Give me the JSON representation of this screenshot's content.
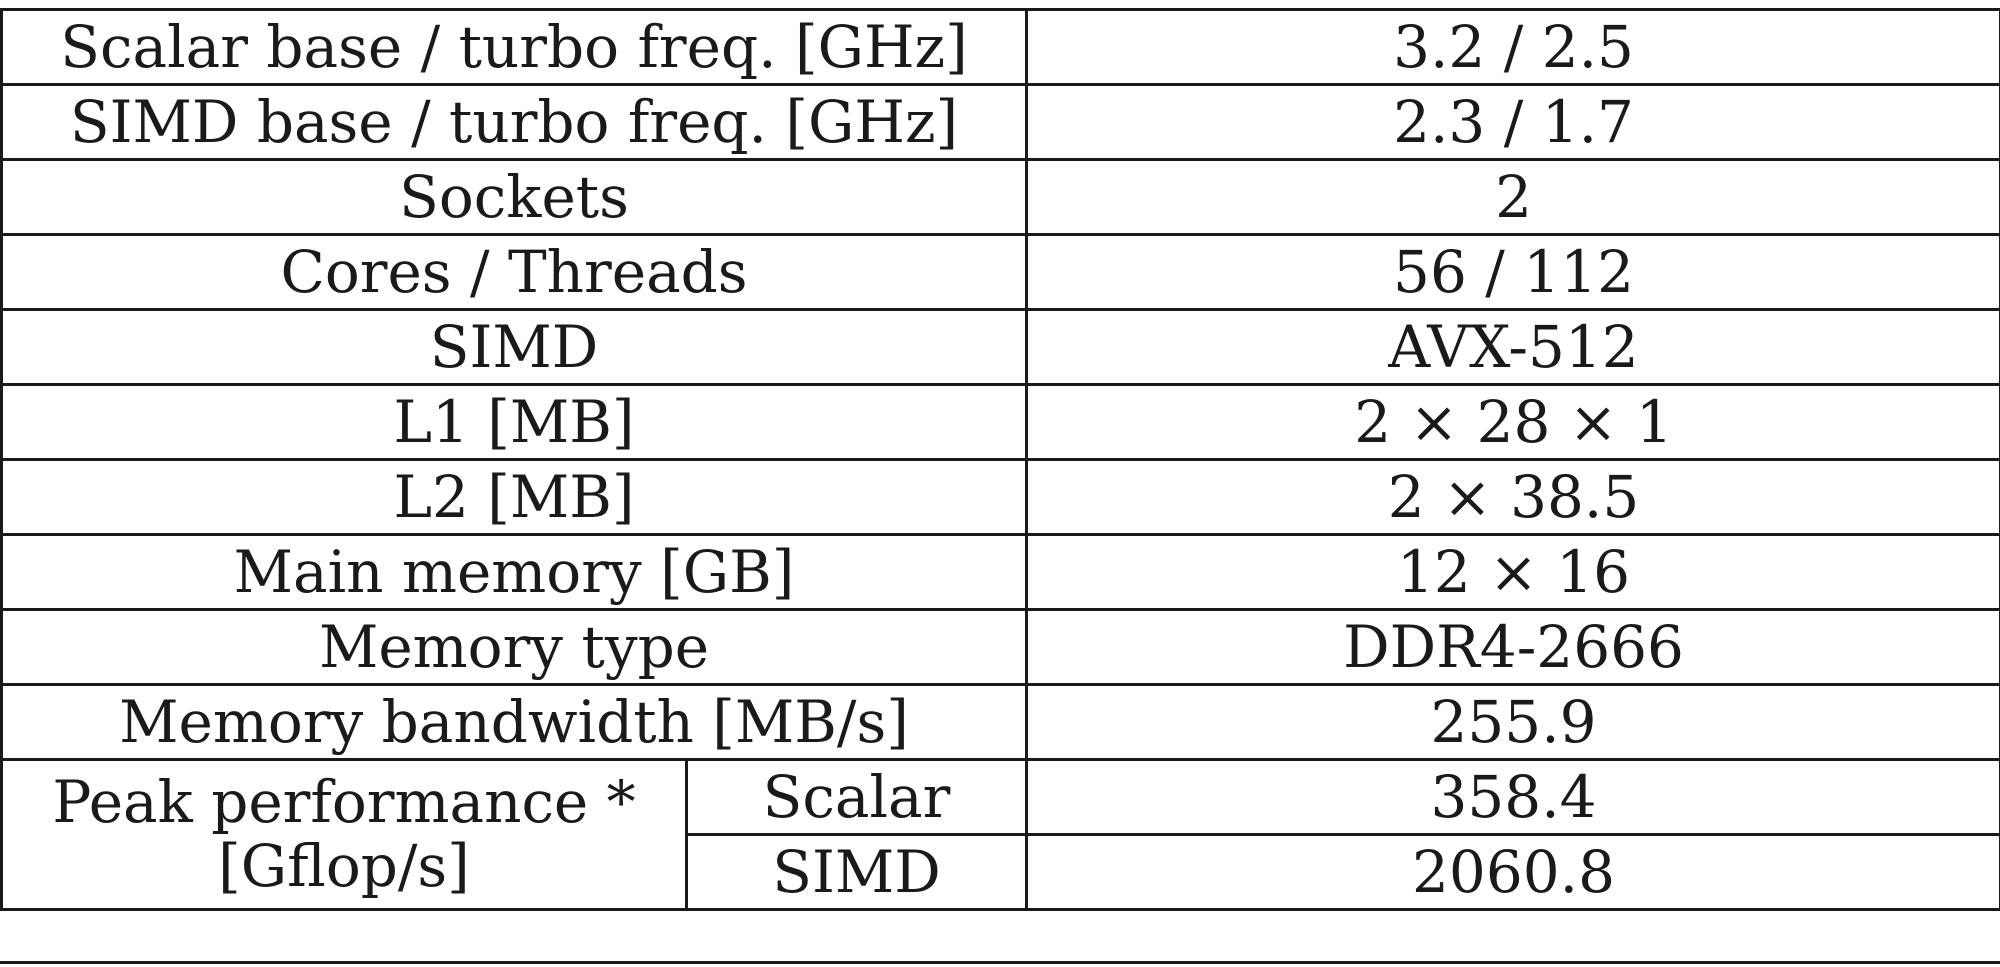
{
  "rows": [
    {
      "label": "Scalar base / turbo freq. [GHz]",
      "value": "3.2 / 2.5"
    },
    {
      "label": "SIMD base / turbo freq. [GHz]",
      "value": "2.3 / 1.7"
    },
    {
      "label": "Sockets",
      "value": "2"
    },
    {
      "label": "Cores / Threads",
      "value": "56 / 112"
    },
    {
      "label": "SIMD",
      "value": "AVX-512"
    },
    {
      "label": "L1 [MB]",
      "value": "2 × 28 × 1"
    },
    {
      "label": "L2 [MB]",
      "value": "2 × 38.5"
    },
    {
      "label": "Main memory [GB]",
      "value": "12 × 16"
    },
    {
      "label": "Memory type",
      "value": "DDR4-2666"
    },
    {
      "label": "Memory bandwidth [MB/s]",
      "value": "255.9"
    }
  ],
  "peak": {
    "label_line1": "Peak performance *",
    "label_line2": "[Gflop/s]",
    "scalar_label": "Scalar",
    "scalar_value": "358.4",
    "simd_label": "SIMD",
    "simd_value": "2060.8"
  }
}
